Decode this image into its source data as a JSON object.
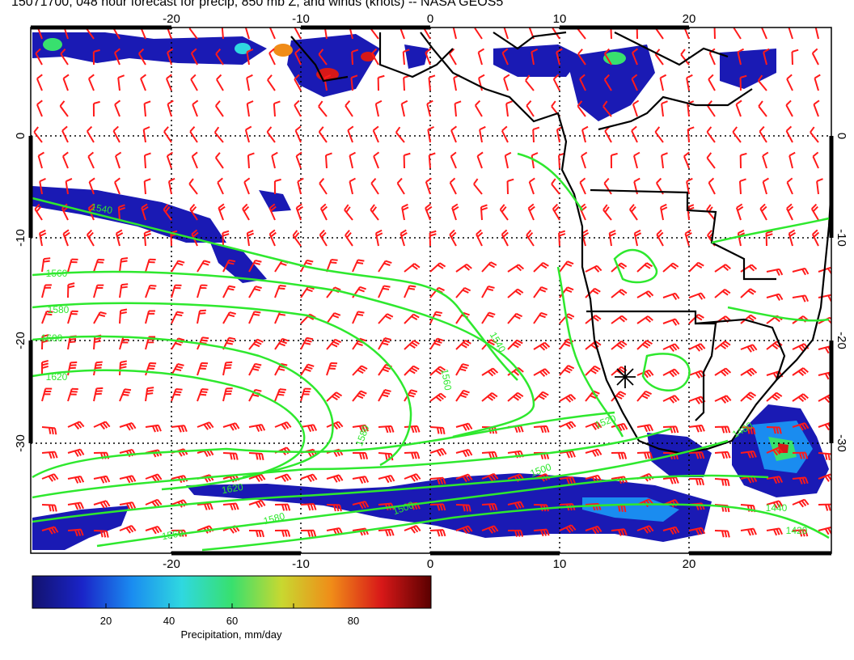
{
  "title": "15071700, 048 hour forecast for precip, 850 mb Z, and winds (knots) -- NASA GEOS5",
  "map": {
    "lon_ticks": [
      "-20",
      "-10",
      "0",
      "10",
      "20"
    ],
    "lat_ticks": [
      "0",
      "-10",
      "-20",
      "-30"
    ],
    "contour_labels": [
      "1540",
      "1560",
      "1580",
      "1600",
      "1620",
      "1540",
      "1560",
      "1580",
      "1500",
      "1520",
      "1480",
      "1440",
      "1420",
      "1620",
      "1500",
      "1560",
      "1580"
    ],
    "colors": {
      "contour": "#2ee82e",
      "barb": "#ff1a1a",
      "coast": "#000000",
      "precip_low": "#1a1ab4",
      "precip_high": "#7a0000"
    },
    "marker_icon": "asterisk"
  },
  "colorbar": {
    "ticks": [
      "20",
      "40",
      "60",
      "80"
    ],
    "label": "Precipitation, mm/day",
    "stops": [
      "#12126e",
      "#1a24c8",
      "#1a8cf0",
      "#2fd8e0",
      "#38e06e",
      "#c8d830",
      "#f08c18",
      "#d81818",
      "#5a0000"
    ]
  }
}
